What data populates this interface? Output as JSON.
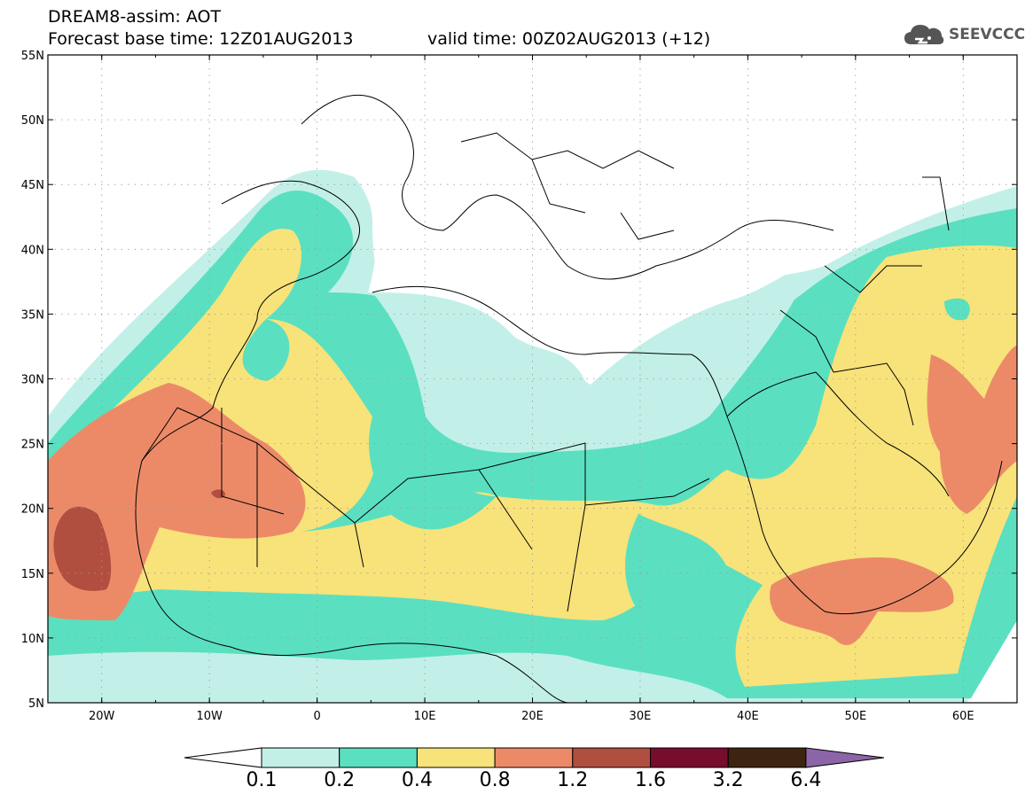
{
  "title": {
    "line1": "DREAM8-assim: AOT",
    "base_time": "Forecast base time: 12Z01AUG2013",
    "valid_time": "valid time: 00Z02AUG2013 (+12)"
  },
  "logo": {
    "text": "SEEVCCC",
    "icon": "cloud-logo-icon"
  },
  "map": {
    "lat_labels": [
      "55N",
      "50N",
      "45N",
      "40N",
      "35N",
      "30N",
      "25N",
      "20N",
      "15N",
      "10N",
      "5N"
    ],
    "lon_labels": [
      "20W",
      "10W",
      "0",
      "10E",
      "20E",
      "30E",
      "40E",
      "50E",
      "60E"
    ],
    "lat_values": [
      55,
      50,
      45,
      40,
      35,
      30,
      25,
      20,
      15,
      10,
      5
    ],
    "lon_values": [
      -20,
      -10,
      0,
      10,
      20,
      30,
      40,
      50,
      60
    ],
    "extent": {
      "lon_min": -25,
      "lon_max": 65,
      "lat_min": 5,
      "lat_max": 55
    },
    "field": "AOT"
  },
  "colorbar": {
    "labels": [
      "0.1",
      "0.2",
      "0.4",
      "0.8",
      "1.2",
      "1.6",
      "3.2",
      "6.4"
    ],
    "colors": [
      "#ffffff",
      "#c2f0e8",
      "#5ae0c0",
      "#f8e27a",
      "#ec8a68",
      "#b04e40",
      "#780c2c",
      "#3c2410",
      "#8c64a8"
    ]
  }
}
